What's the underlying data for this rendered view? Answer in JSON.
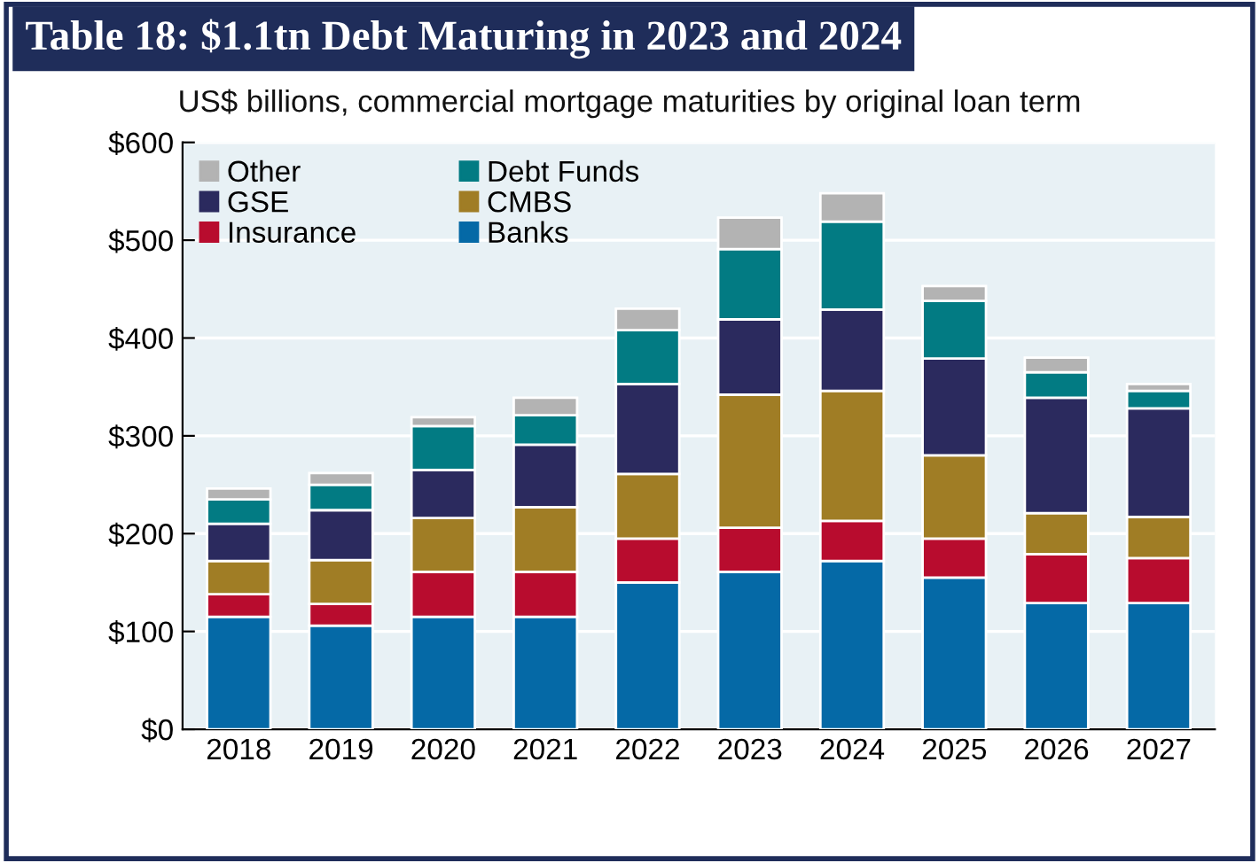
{
  "chart_data": {
    "type": "bar",
    "stacked": true,
    "title": "Table 18: $1.1tn Debt Maturing in 2023 and 2024",
    "subtitle": "US$ billions, commercial mortgage maturities by original loan term",
    "categories": [
      "2018",
      "2019",
      "2020",
      "2021",
      "2022",
      "2023",
      "2024",
      "2025",
      "2026",
      "2027"
    ],
    "series": [
      {
        "name": "Banks",
        "color": "#0569a6",
        "values": [
          115,
          106,
          115,
          115,
          150,
          161,
          172,
          155,
          129,
          129
        ]
      },
      {
        "name": "Insurance",
        "color": "#b80c2e",
        "values": [
          23,
          22,
          46,
          46,
          45,
          45,
          41,
          40,
          50,
          46
        ]
      },
      {
        "name": "CMBS",
        "color": "#a07d25",
        "values": [
          34,
          45,
          55,
          66,
          66,
          136,
          133,
          85,
          42,
          42
        ]
      },
      {
        "name": "GSE",
        "color": "#2b2a5e",
        "values": [
          38,
          51,
          49,
          64,
          92,
          77,
          83,
          99,
          118,
          111
        ]
      },
      {
        "name": "Debt Funds",
        "color": "#027b83",
        "values": [
          25,
          26,
          45,
          30,
          55,
          72,
          90,
          59,
          26,
          18
        ]
      },
      {
        "name": "Other",
        "color": "#b3b3b3",
        "values": [
          11,
          12,
          9,
          18,
          22,
          32,
          29,
          15,
          15,
          7
        ]
      }
    ],
    "ylim": [
      0,
      600
    ],
    "yticks": [
      {
        "value": 0,
        "label": "$0"
      },
      {
        "value": 100,
        "label": "$100"
      },
      {
        "value": 200,
        "label": "$200"
      },
      {
        "value": 300,
        "label": "$300"
      },
      {
        "value": 400,
        "label": "$400"
      },
      {
        "value": 500,
        "label": "$500"
      },
      {
        "value": 600,
        "label": "$600"
      }
    ],
    "grid": "y",
    "legend": "top left"
  }
}
